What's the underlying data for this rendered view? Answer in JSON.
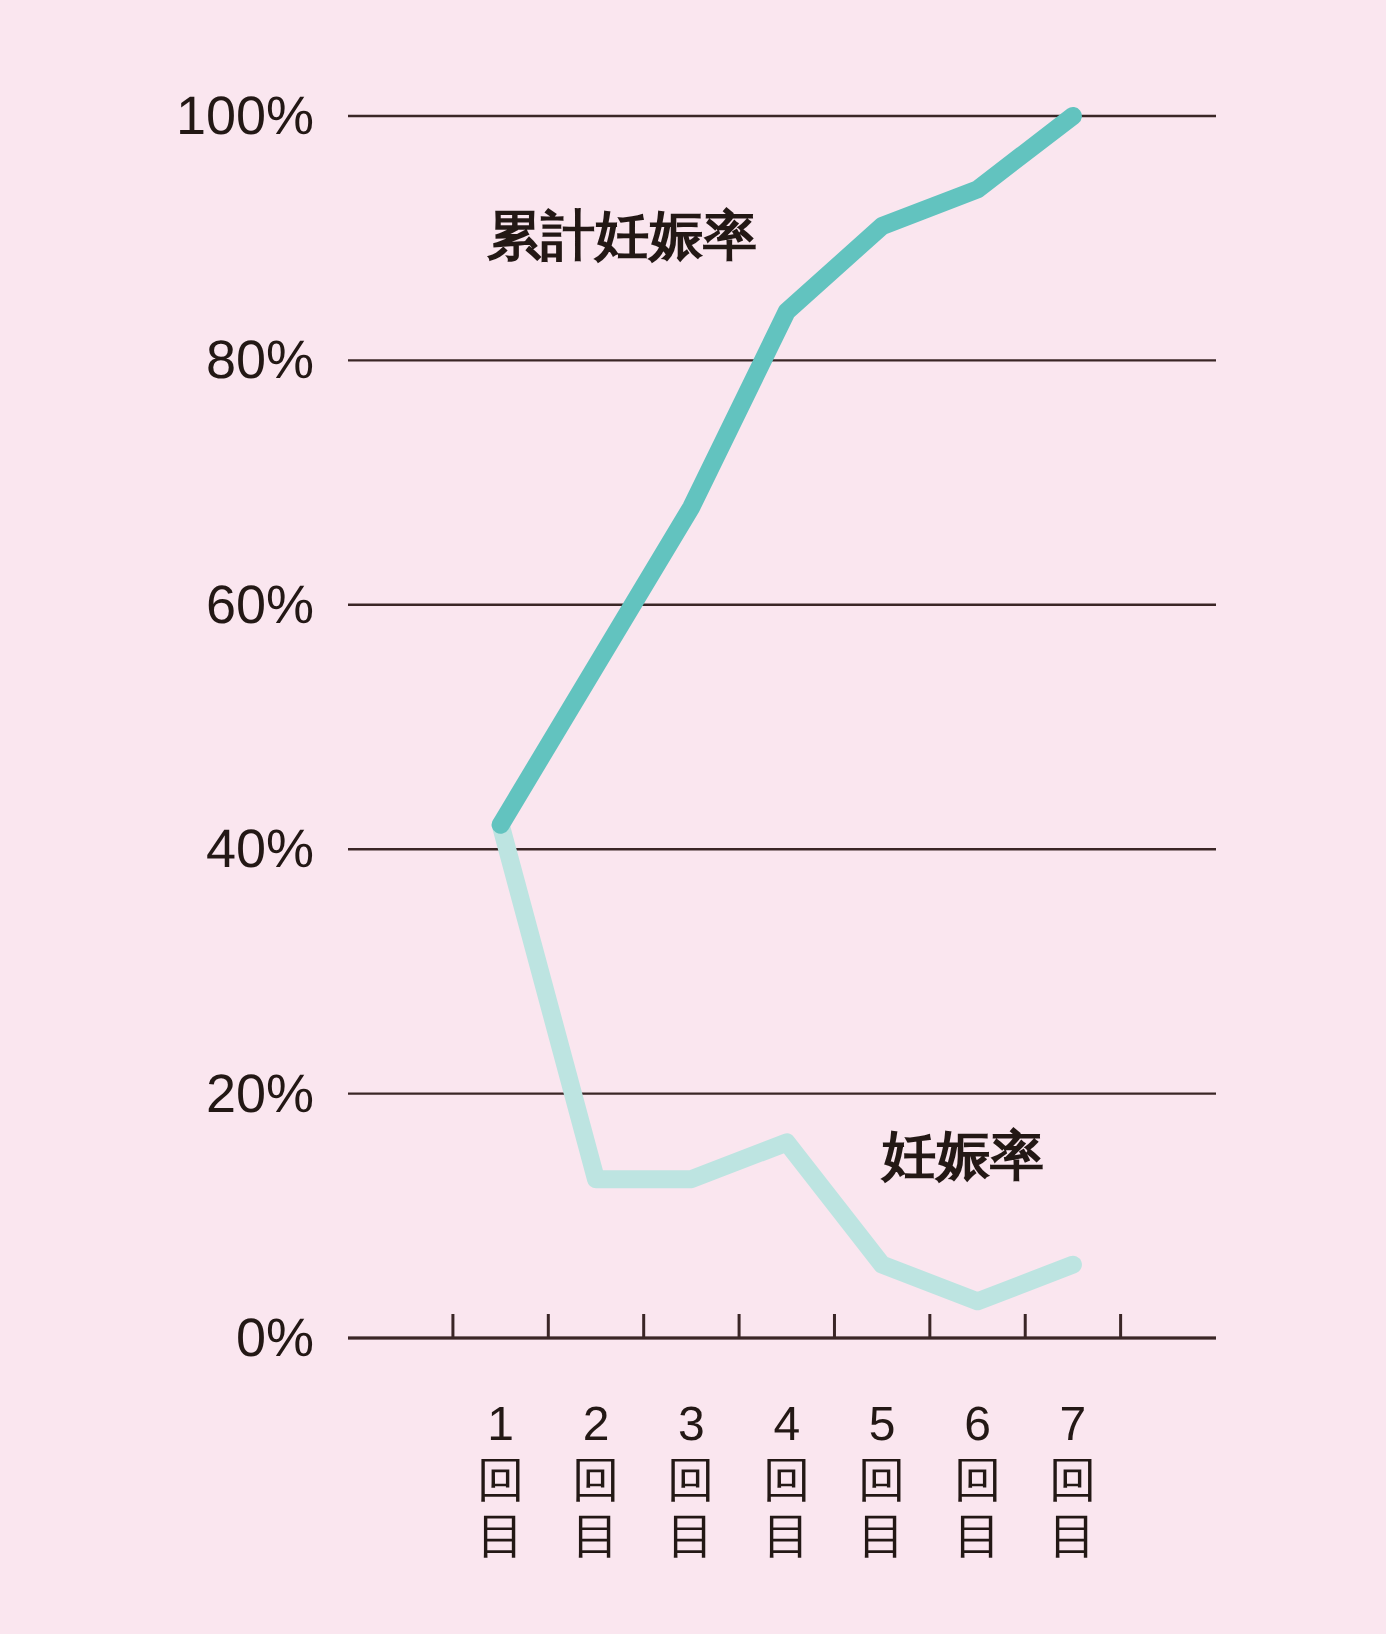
{
  "chart_data": {
    "type": "line",
    "categories": [
      "1回目",
      "2回目",
      "3回目",
      "4回目",
      "5回目",
      "6回目",
      "7回目"
    ],
    "series": [
      {
        "name": "累計妊娠率",
        "color": "#62c3bf",
        "values": [
          42,
          55,
          68,
          84,
          91,
          94,
          100
        ]
      },
      {
        "name": "妊娠率",
        "color": "#bde4e1",
        "values": [
          42,
          13,
          13,
          16,
          6,
          3,
          6
        ]
      }
    ],
    "ylim": [
      0,
      100
    ],
    "yticks": [
      {
        "value": 0,
        "label": "0%"
      },
      {
        "value": 20,
        "label": "20%"
      },
      {
        "value": 40,
        "label": "40%"
      },
      {
        "value": 60,
        "label": "60%"
      },
      {
        "value": 80,
        "label": "80%"
      },
      {
        "value": 100,
        "label": "100%"
      }
    ],
    "grid": "y",
    "marker": "none",
    "line_style": "solid"
  }
}
